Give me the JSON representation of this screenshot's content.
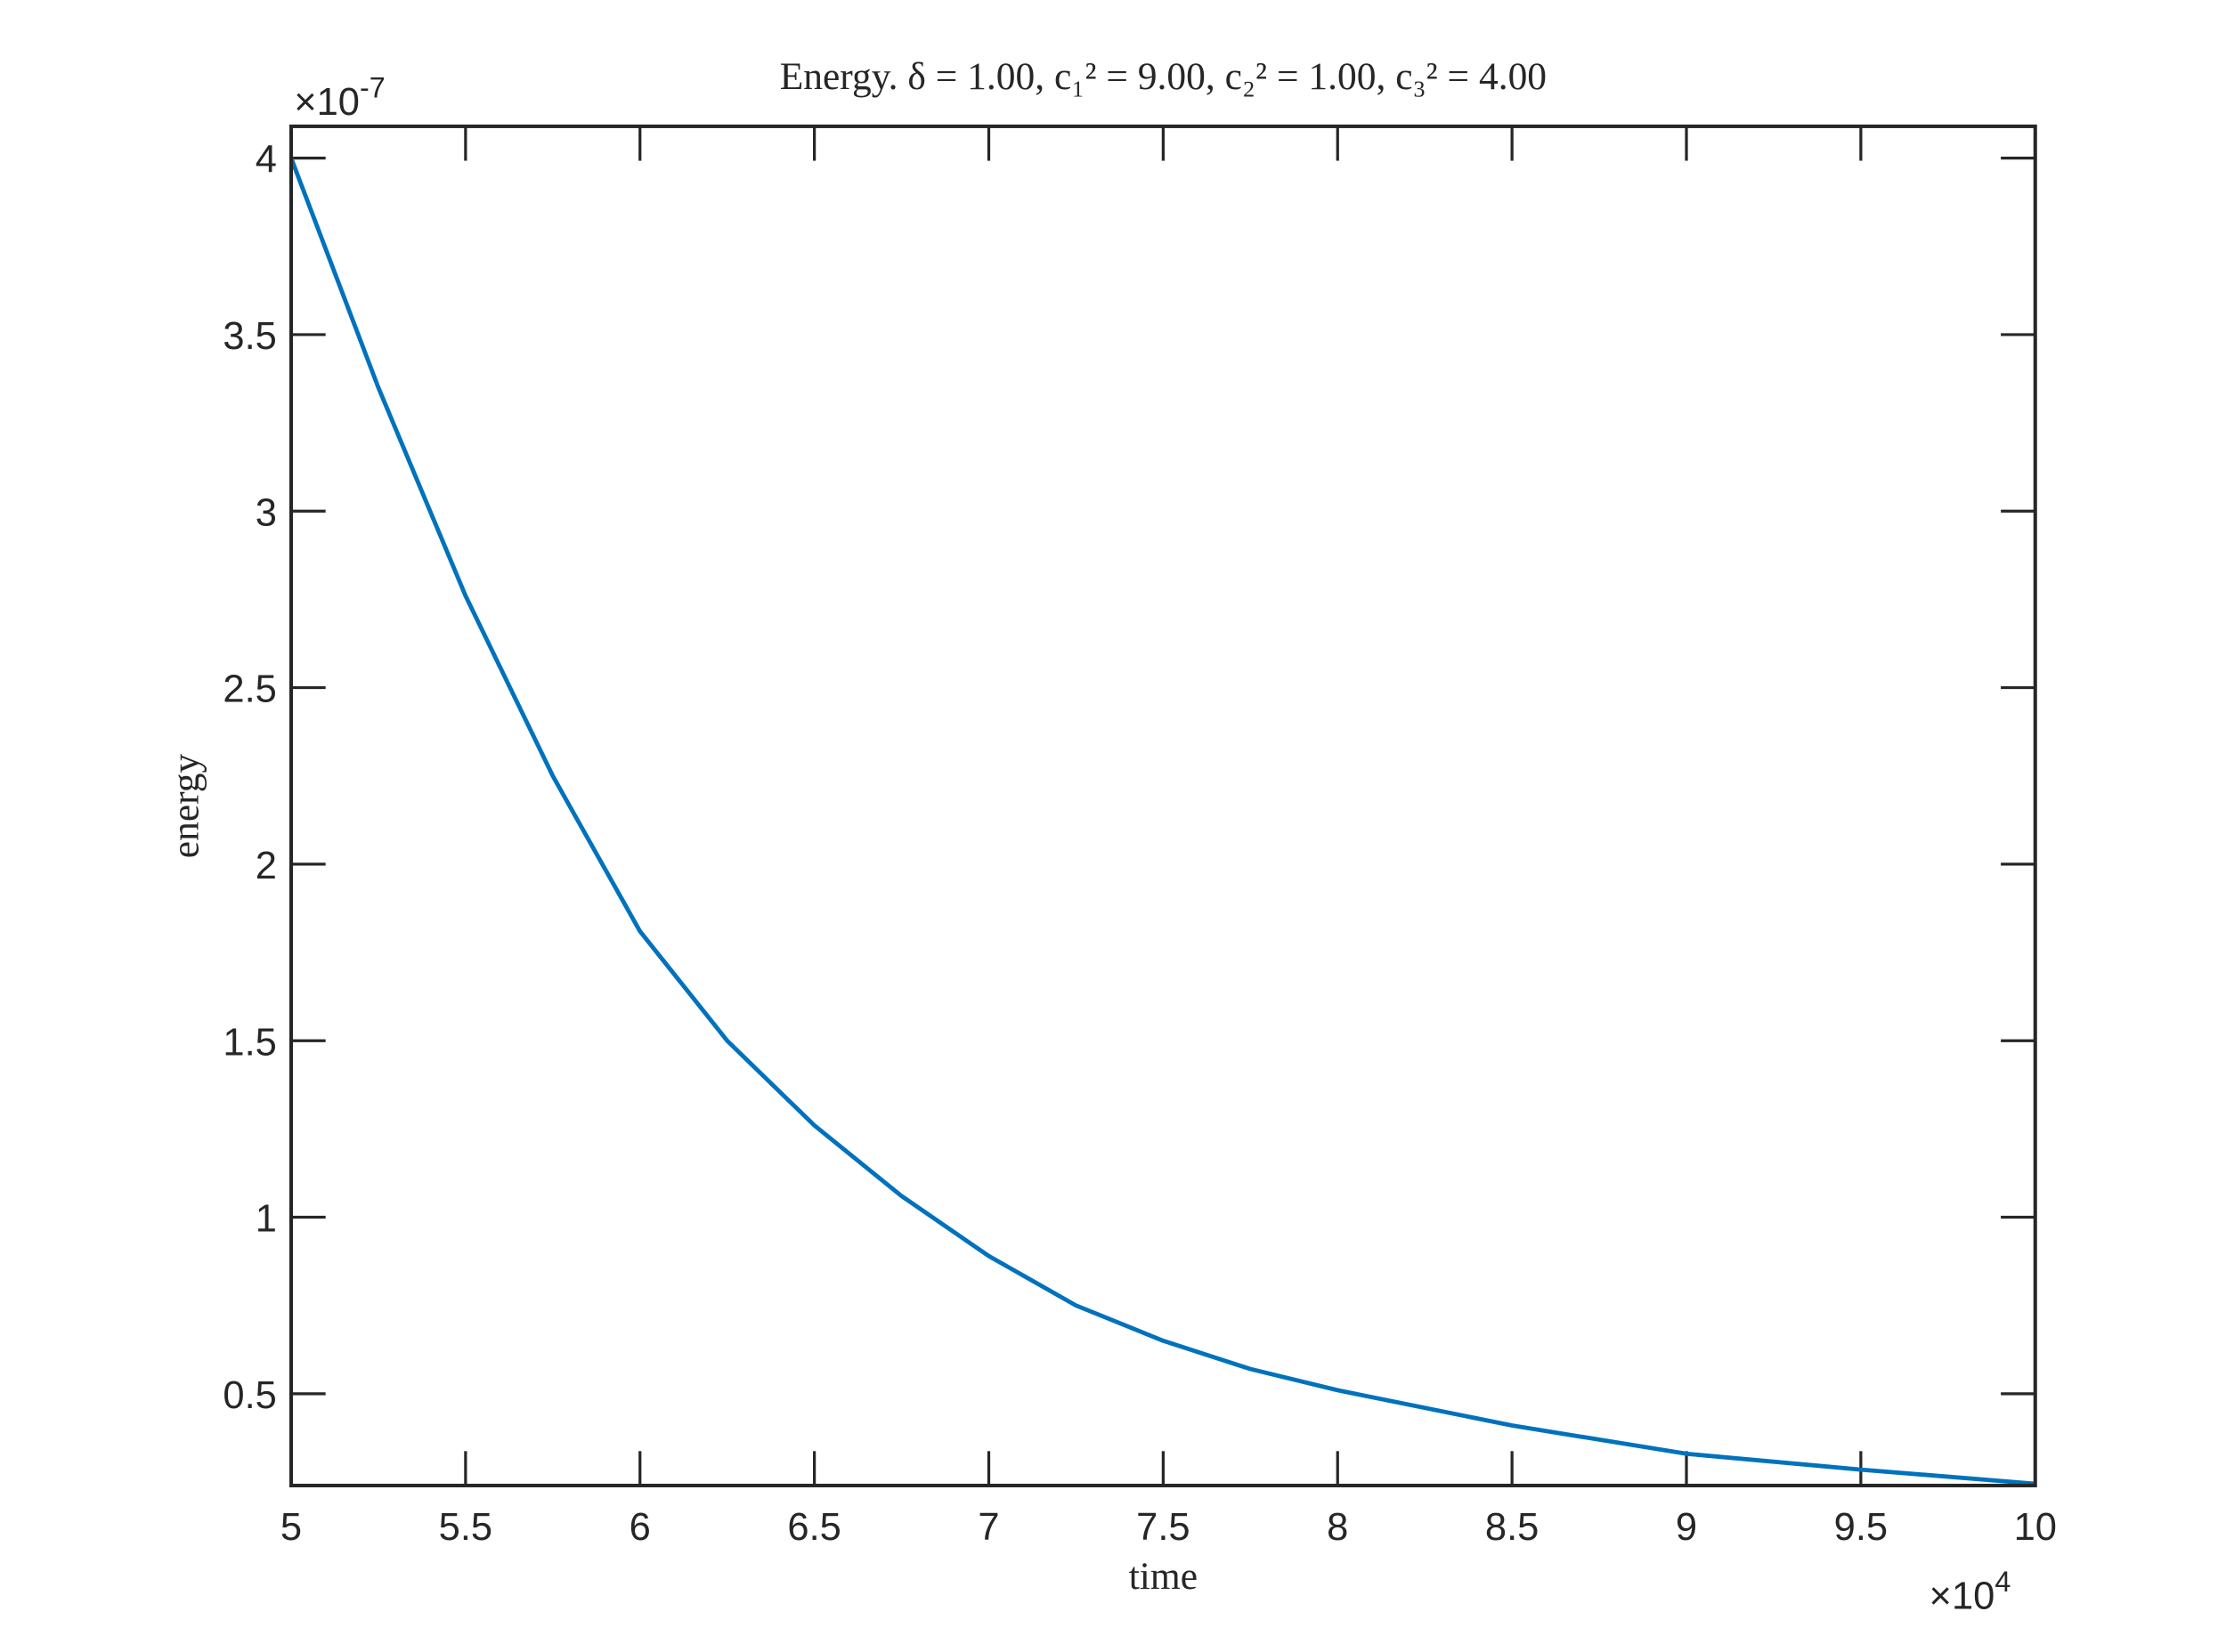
{
  "chart_data": {
    "type": "line",
    "title": "Energy. δ = 1.00, c₁² = 9.00, c₂² = 1.00, c₃² = 4.00",
    "x_label": "time",
    "y_label": "energy",
    "x_exponent": {
      "base": "×10",
      "power": "4"
    },
    "y_exponent": {
      "base": "×10",
      "power": "-7"
    },
    "x": [
      5,
      5.25,
      5.5,
      5.75,
      6,
      6.25,
      6.5,
      6.75,
      7,
      7.25,
      7.5,
      7.75,
      8,
      8.5,
      9,
      9.5,
      10
    ],
    "series": [
      {
        "name": "energy",
        "color": "#0072bd",
        "values": [
          4.0,
          3.35,
          2.76,
          2.25,
          1.81,
          1.5,
          1.26,
          1.06,
          0.89,
          0.75,
          0.65,
          0.57,
          0.51,
          0.41,
          0.33,
          0.285,
          0.245
        ]
      }
    ],
    "xlim": [
      5,
      10
    ],
    "ylim": [
      0.24,
      4.09
    ],
    "xticks": [
      5,
      5.5,
      6,
      6.5,
      7,
      7.5,
      8,
      8.5,
      9,
      9.5,
      10
    ],
    "yticks": [
      0.5,
      1,
      1.5,
      2,
      2.5,
      3,
      3.5,
      4
    ],
    "grid": false,
    "box": true
  }
}
